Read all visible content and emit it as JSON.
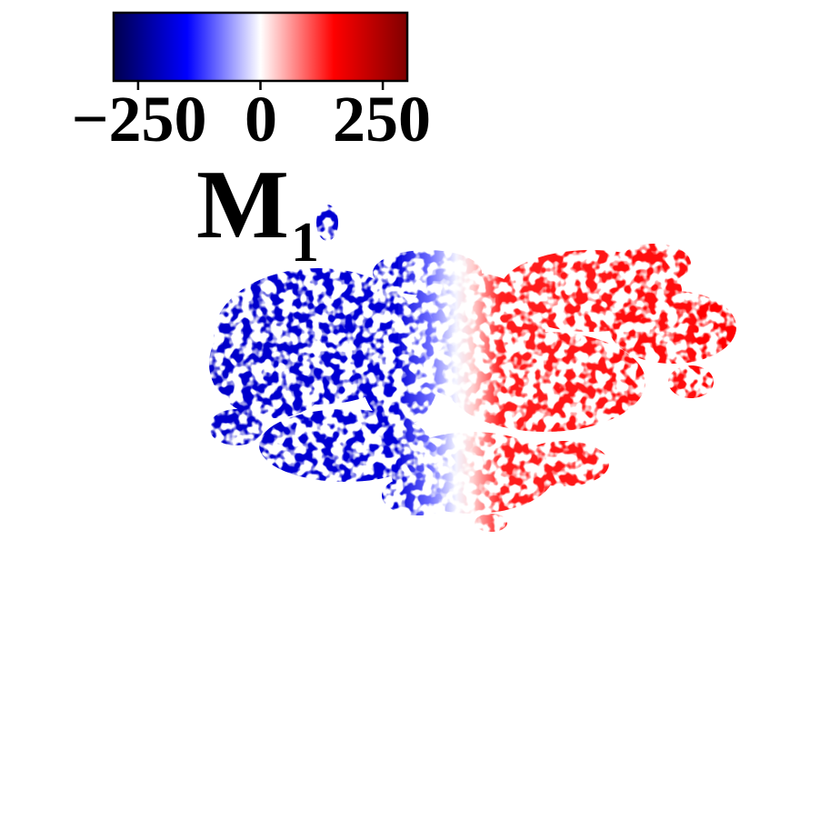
{
  "title": {
    "main": "M",
    "subscript": "1"
  },
  "colorbar": {
    "colormap": "seismic",
    "colors": [
      "#00004d",
      "#0000ff",
      "#ffffff",
      "#ff0000",
      "#800000"
    ],
    "range": [
      -300,
      300
    ],
    "ticks": [
      {
        "value": -250,
        "label": "−250"
      },
      {
        "value": 0,
        "label": "0"
      },
      {
        "value": 250,
        "label": "250"
      }
    ]
  },
  "map": {
    "description_colors": {
      "negative": "#0000d0",
      "positive": "#ff0000",
      "zero": "#ffffff"
    }
  }
}
